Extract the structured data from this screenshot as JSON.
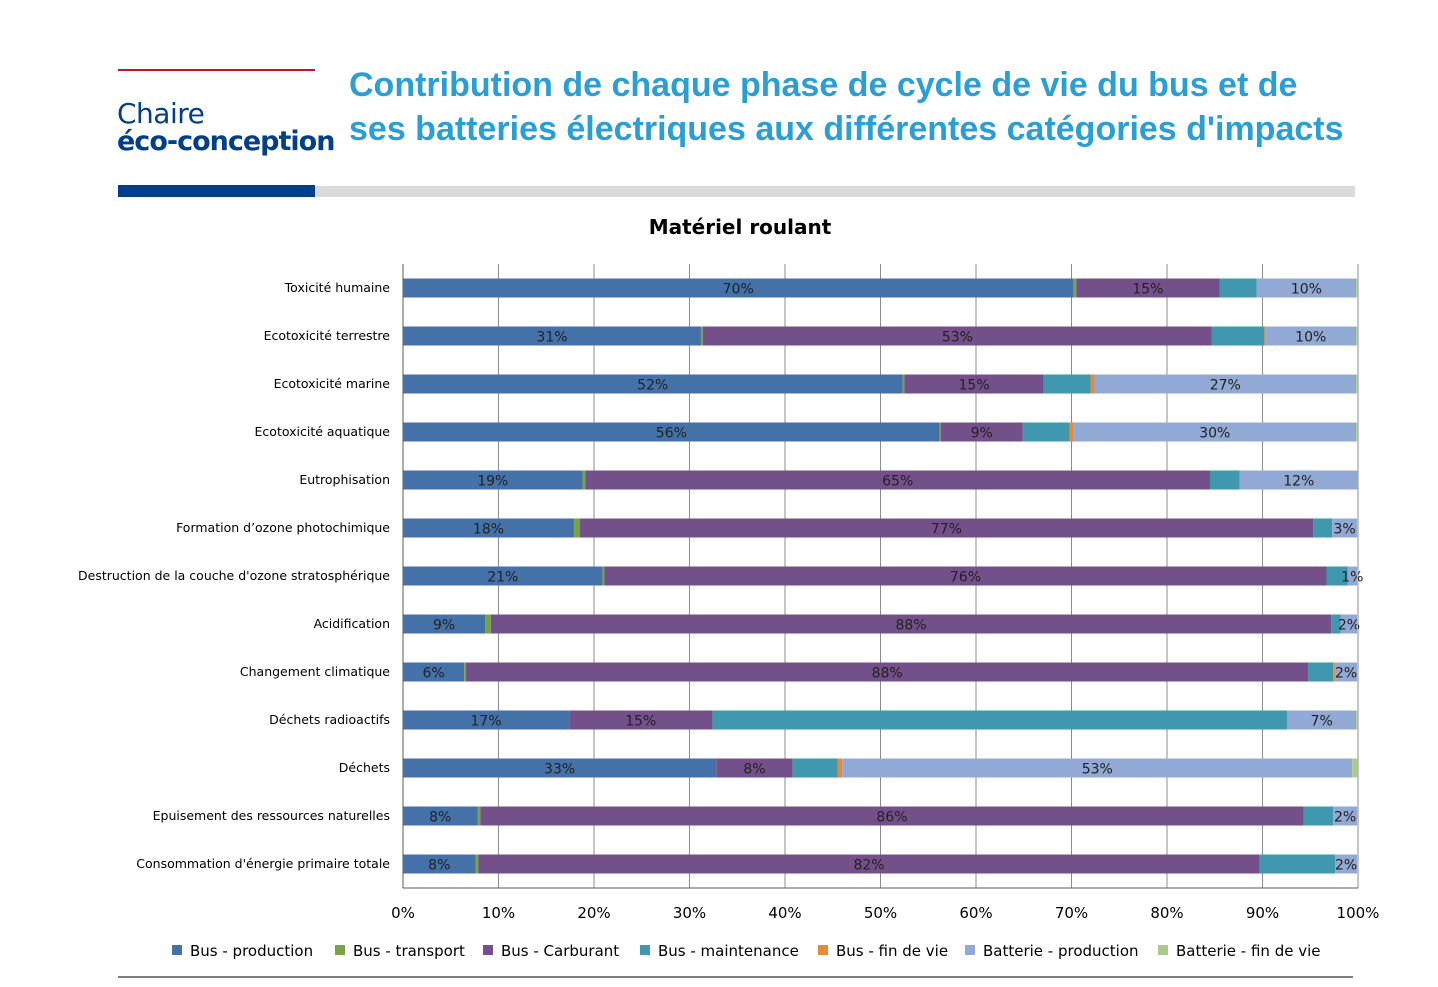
{
  "header": {
    "logo_line1": "Chaire",
    "logo_line2": "éco-conception",
    "title": "Contribution de chaque phase de cycle de vie du bus et de ses batteries électriques aux différentes catégories d'impacts"
  },
  "colors": {
    "title": "#2a9fd6",
    "logo": "#003f8a",
    "logo_accent": "#c8102e"
  },
  "chart_data": {
    "type": "bar",
    "orientation": "horizontal",
    "stacked": "percent",
    "title": "Matériel roulant",
    "xlabel": "",
    "ylabel": "",
    "xlim": [
      0,
      100
    ],
    "grid": true,
    "legend_position": "bottom",
    "x_ticks": [
      "0%",
      "10%",
      "20%",
      "30%",
      "40%",
      "50%",
      "60%",
      "70%",
      "80%",
      "90%",
      "100%"
    ],
    "categories": [
      "Toxicité humaine",
      "Ecotoxicité terrestre",
      "Ecotoxicité marine",
      "Ecotoxicité aquatique",
      "Eutrophisation",
      "Formation d’ozone photochimique",
      "Destruction de la couche d'ozone stratosphérique",
      "Acidification",
      "Changement climatique",
      "Déchets radioactifs",
      "Déchets",
      "Epuisement des ressources naturelles",
      "Consommation d'énergie primaire totale"
    ],
    "series": [
      {
        "name": "Bus - production",
        "color": "#4472a8",
        "values": [
          70.2,
          31.2,
          52.3,
          56.2,
          18.8,
          17.9,
          20.9,
          8.6,
          6.4,
          17.4,
          32.8,
          7.8,
          7.6
        ],
        "labels": [
          "70%",
          "31%",
          "52%",
          "56%",
          "19%",
          "18%",
          "21%",
          "9%",
          "6%",
          "17%",
          "33%",
          "8%",
          "8%"
        ]
      },
      {
        "name": "Bus - transport",
        "color": "#77a345",
        "values": [
          0.3,
          0.2,
          0.2,
          0.1,
          0.3,
          0.6,
          0.2,
          0.6,
          0.2,
          0.0,
          0.0,
          0.3,
          0.3
        ],
        "labels": [
          "",
          "",
          "",
          "",
          "",
          "",
          "",
          "",
          "",
          "",
          "",
          "",
          ""
        ]
      },
      {
        "name": "Bus - Carburant",
        "color": "#735089",
        "values": [
          15.0,
          53.3,
          14.6,
          8.6,
          65.4,
          76.8,
          75.6,
          88.0,
          88.2,
          15.0,
          8.0,
          86.2,
          81.8
        ],
        "labels": [
          "15%",
          "53%",
          "15%",
          "9%",
          "65%",
          "77%",
          "76%",
          "88%",
          "88%",
          "15%",
          "8%",
          "86%",
          "82%"
        ]
      },
      {
        "name": "Bus - maintenance",
        "color": "#3f98ae",
        "values": [
          3.9,
          5.5,
          4.9,
          4.9,
          3.1,
          2.0,
          2.2,
          1.0,
          2.6,
          60.2,
          4.7,
          3.1,
          7.9
        ],
        "labels": [
          "",
          "",
          "",
          "",
          "",
          "",
          "",
          "",
          "",
          "",
          "",
          "",
          ""
        ]
      },
      {
        "name": "Bus - fin de vie",
        "color": "#e58a3b",
        "values": [
          0.0,
          0.1,
          0.4,
          0.4,
          0.0,
          0.0,
          0.0,
          0.0,
          0.2,
          0.0,
          0.5,
          0.0,
          0.0
        ],
        "labels": [
          "",
          "",
          "",
          "",
          "",
          "",
          "",
          "",
          "",
          "",
          "",
          "",
          ""
        ]
      },
      {
        "name": "Batterie - production",
        "color": "#91a9d3",
        "values": [
          10.4,
          9.5,
          27.4,
          29.6,
          12.4,
          2.6,
          1.0,
          1.7,
          2.3,
          7.2,
          53.4,
          2.5,
          2.3
        ],
        "labels": [
          "10%",
          "10%",
          "27%",
          "30%",
          "12%",
          "3%",
          "1%",
          "2%",
          "2%",
          "7%",
          "53%",
          "2%",
          "2%"
        ]
      },
      {
        "name": "Batterie - fin de vie",
        "color": "#a9cc8e",
        "values": [
          0.2,
          0.2,
          0.2,
          0.2,
          0.0,
          0.1,
          0.1,
          0.1,
          0.1,
          0.2,
          0.6,
          0.1,
          0.1
        ],
        "labels": [
          "",
          "",
          "",
          "",
          "",
          "",
          "",
          "",
          "",
          "",
          "",
          "",
          ""
        ]
      }
    ]
  }
}
